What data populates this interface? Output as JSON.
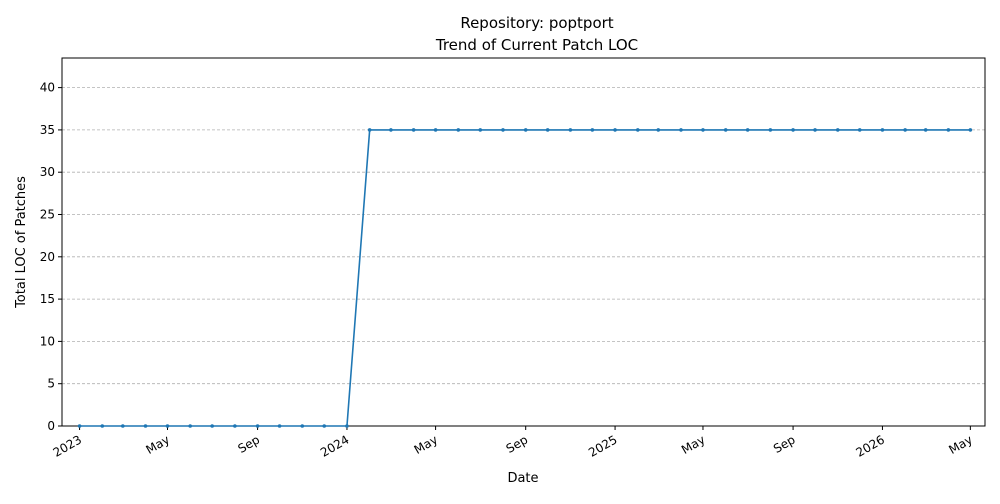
{
  "chart_data": {
    "type": "line",
    "title": "Repository: poptport",
    "subtitle": "Trend of Current Patch LOC",
    "xlabel": "Date",
    "ylabel": "Total LOC of Patches",
    "x_axis_type": "date",
    "xlim": [
      "2022-12-08",
      "2026-05-21"
    ],
    "ylim": [
      0,
      43.5
    ],
    "yticks": [
      0,
      5,
      10,
      15,
      20,
      25,
      30,
      35,
      40
    ],
    "xticks": [
      {
        "date": "2023-01-01",
        "label": "2023"
      },
      {
        "date": "2023-05-01",
        "label": "May"
      },
      {
        "date": "2023-09-01",
        "label": "Sep"
      },
      {
        "date": "2024-01-01",
        "label": "2024"
      },
      {
        "date": "2024-05-01",
        "label": "May"
      },
      {
        "date": "2024-09-01",
        "label": "Sep"
      },
      {
        "date": "2025-01-01",
        "label": "2025"
      },
      {
        "date": "2025-05-01",
        "label": "May"
      },
      {
        "date": "2025-09-01",
        "label": "Sep"
      },
      {
        "date": "2026-01-01",
        "label": "2026"
      },
      {
        "date": "2026-05-01",
        "label": "May"
      }
    ],
    "grid": "y-dashed",
    "series": [
      {
        "color": "#1f77b4",
        "points": [
          [
            "2023-01-01",
            0
          ],
          [
            "2023-02-01",
            0
          ],
          [
            "2023-03-01",
            0
          ],
          [
            "2023-04-01",
            0
          ],
          [
            "2023-05-01",
            0
          ],
          [
            "2023-06-01",
            0
          ],
          [
            "2023-07-01",
            0
          ],
          [
            "2023-08-01",
            0
          ],
          [
            "2023-09-01",
            0
          ],
          [
            "2023-10-01",
            0
          ],
          [
            "2023-11-01",
            0
          ],
          [
            "2023-12-01",
            0
          ],
          [
            "2024-01-01",
            0
          ],
          [
            "2024-02-01",
            35
          ],
          [
            "2024-03-01",
            35
          ],
          [
            "2024-04-01",
            35
          ],
          [
            "2024-05-01",
            35
          ],
          [
            "2024-06-01",
            35
          ],
          [
            "2024-07-01",
            35
          ],
          [
            "2024-08-01",
            35
          ],
          [
            "2024-09-01",
            35
          ],
          [
            "2024-10-01",
            35
          ],
          [
            "2024-11-01",
            35
          ],
          [
            "2024-12-01",
            35
          ],
          [
            "2025-01-01",
            35
          ],
          [
            "2025-02-01",
            35
          ],
          [
            "2025-03-01",
            35
          ],
          [
            "2025-04-01",
            35
          ],
          [
            "2025-05-01",
            35
          ],
          [
            "2025-06-01",
            35
          ],
          [
            "2025-07-01",
            35
          ],
          [
            "2025-08-01",
            35
          ],
          [
            "2025-09-01",
            35
          ],
          [
            "2025-10-01",
            35
          ],
          [
            "2025-11-01",
            35
          ],
          [
            "2025-12-01",
            35
          ],
          [
            "2026-01-01",
            35
          ],
          [
            "2026-02-01",
            35
          ],
          [
            "2026-03-01",
            35
          ],
          [
            "2026-04-01",
            35
          ],
          [
            "2026-05-01",
            35
          ]
        ]
      }
    ]
  }
}
